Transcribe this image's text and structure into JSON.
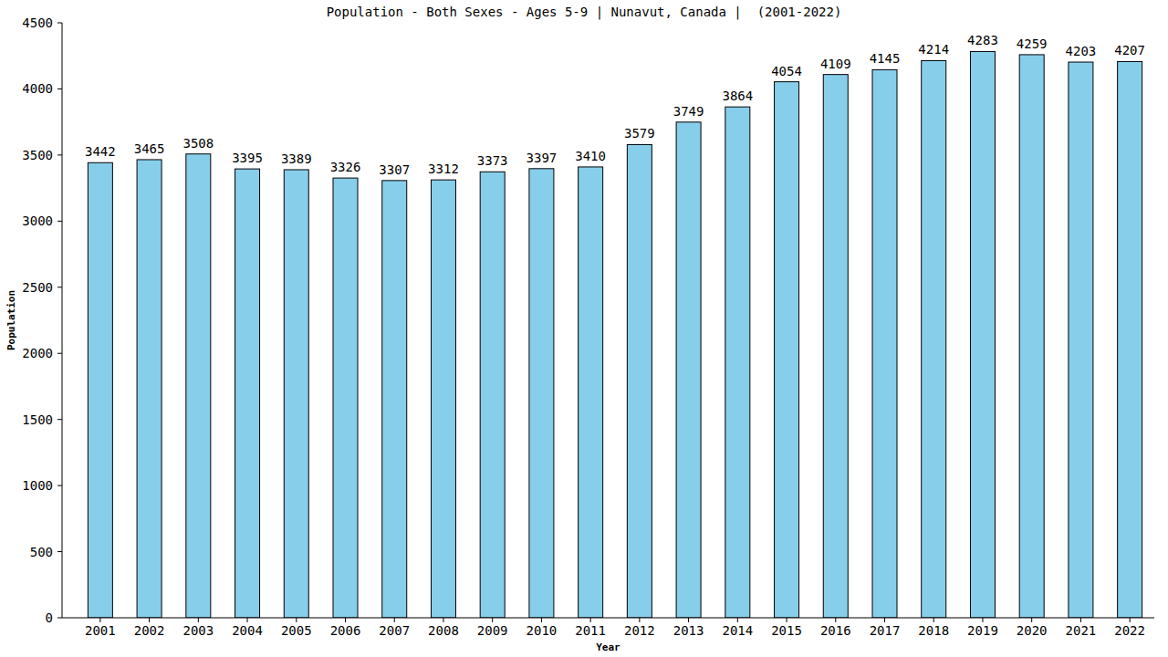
{
  "chart_data": {
    "type": "bar",
    "title": "Population - Both Sexes - Ages 5-9 | Nunavut, Canada |  (2001-2022)",
    "x_label": "Year",
    "y_label": "Population",
    "categories": [
      "2001",
      "2002",
      "2003",
      "2004",
      "2005",
      "2006",
      "2007",
      "2008",
      "2009",
      "2010",
      "2011",
      "2012",
      "2013",
      "2014",
      "2015",
      "2016",
      "2017",
      "2018",
      "2019",
      "2020",
      "2021",
      "2022"
    ],
    "values": [
      3442,
      3465,
      3508,
      3395,
      3389,
      3326,
      3307,
      3312,
      3373,
      3397,
      3410,
      3579,
      3749,
      3864,
      4054,
      4109,
      4145,
      4214,
      4283,
      4259,
      4203,
      4207
    ],
    "color": "#87ceeb",
    "ylim": [
      0,
      4500
    ],
    "yticks": [
      0,
      500,
      1000,
      1500,
      2000,
      2500,
      3000,
      3500,
      4000,
      4500
    ],
    "grid": false,
    "data_labels": true
  }
}
